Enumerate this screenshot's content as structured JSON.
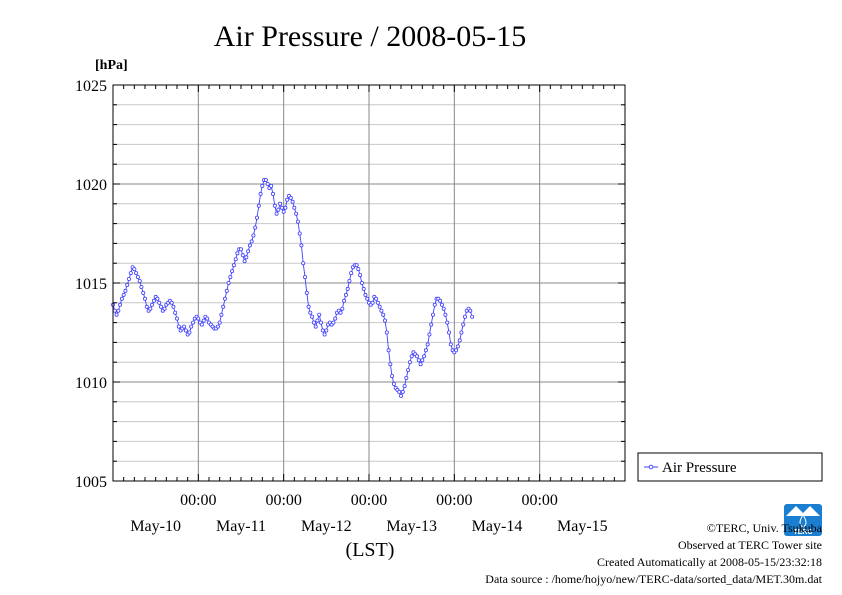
{
  "chart_data": {
    "type": "line",
    "title": "Air Pressure / 2008-05-15",
    "ylabel": "[hPa]",
    "xlabel": "(LST)",
    "ylim": [
      1005,
      1025
    ],
    "yticks": [
      1005,
      1010,
      1015,
      1020,
      1025
    ],
    "xlim_hours": [
      0,
      144
    ],
    "time_ticks": [
      "00:00",
      "00:00",
      "00:00",
      "00:00",
      "00:00"
    ],
    "date_labels": [
      "May-10",
      "May-11",
      "May-12",
      "May-13",
      "May-14",
      "May-15"
    ],
    "grid": true,
    "legend_position": "right",
    "series": [
      {
        "name": "Air Pressure",
        "color": "#4040ff",
        "interval_hours": 0.5,
        "values": [
          1013.9,
          1013.6,
          1013.4,
          1013.6,
          1013.9,
          1014.2,
          1014.4,
          1014.6,
          1014.9,
          1015.2,
          1015.5,
          1015.8,
          1015.7,
          1015.5,
          1015.3,
          1015.1,
          1014.8,
          1014.5,
          1014.2,
          1013.8,
          1013.6,
          1013.7,
          1013.9,
          1014.1,
          1014.3,
          1014.2,
          1014.0,
          1013.8,
          1013.6,
          1013.7,
          1013.9,
          1014.0,
          1014.1,
          1014.0,
          1013.8,
          1013.5,
          1013.2,
          1012.8,
          1012.6,
          1012.7,
          1012.8,
          1012.6,
          1012.4,
          1012.5,
          1012.8,
          1013.0,
          1013.2,
          1013.3,
          1013.2,
          1013.0,
          1012.9,
          1013.1,
          1013.3,
          1013.2,
          1013.0,
          1012.9,
          1012.8,
          1012.7,
          1012.7,
          1012.8,
          1013.0,
          1013.4,
          1013.8,
          1014.2,
          1014.6,
          1015.0,
          1015.3,
          1015.6,
          1015.9,
          1016.2,
          1016.5,
          1016.7,
          1016.7,
          1016.4,
          1016.1,
          1016.3,
          1016.6,
          1016.9,
          1017.1,
          1017.4,
          1017.8,
          1018.3,
          1018.9,
          1019.5,
          1019.9,
          1020.2,
          1020.2,
          1020.0,
          1019.8,
          1019.9,
          1019.5,
          1018.9,
          1018.5,
          1018.7,
          1019.0,
          1018.8,
          1018.6,
          1018.8,
          1019.2,
          1019.4,
          1019.3,
          1019.1,
          1018.8,
          1018.5,
          1018.1,
          1017.5,
          1016.9,
          1016.0,
          1015.3,
          1014.5,
          1013.8,
          1013.5,
          1013.3,
          1013.0,
          1012.8,
          1013.1,
          1013.4,
          1013.0,
          1012.6,
          1012.4,
          1012.6,
          1012.9,
          1013.0,
          1012.9,
          1013.0,
          1013.2,
          1013.5,
          1013.6,
          1013.5,
          1013.7,
          1014.1,
          1014.4,
          1014.7,
          1015.1,
          1015.5,
          1015.8,
          1015.9,
          1015.9,
          1015.7,
          1015.4,
          1015.0,
          1014.7,
          1014.4,
          1014.2,
          1014.0,
          1013.9,
          1014.0,
          1014.3,
          1014.2,
          1014.0,
          1013.8,
          1013.6,
          1013.4,
          1013.1,
          1012.5,
          1011.6,
          1010.9,
          1010.3,
          1009.9,
          1009.7,
          1009.6,
          1009.5,
          1009.3,
          1009.5,
          1009.8,
          1010.2,
          1010.6,
          1011.0,
          1011.3,
          1011.5,
          1011.4,
          1011.3,
          1011.1,
          1010.9,
          1011.1,
          1011.3,
          1011.6,
          1011.9,
          1012.4,
          1012.9,
          1013.4,
          1013.9,
          1014.2,
          1014.2,
          1014.1,
          1013.9,
          1013.7,
          1013.4,
          1013.0,
          1012.5,
          1011.9,
          1011.6,
          1011.5,
          1011.6,
          1011.8,
          1012.1,
          1012.5,
          1012.9,
          1013.3,
          1013.6,
          1013.7,
          1013.6,
          1013.3
        ]
      }
    ]
  },
  "credits": {
    "copyright": "©TERC, Univ. Tsukuba",
    "observed": "Observed at TERC Tower site",
    "created": "Created Automatically at 2008-05-15/23:32:18",
    "source": "Data source : /home/hojyo/new/TERC-data/sorted_data/MET.30m.dat"
  },
  "logo": {
    "text": "TERC",
    "color": "#1a7fd0"
  }
}
